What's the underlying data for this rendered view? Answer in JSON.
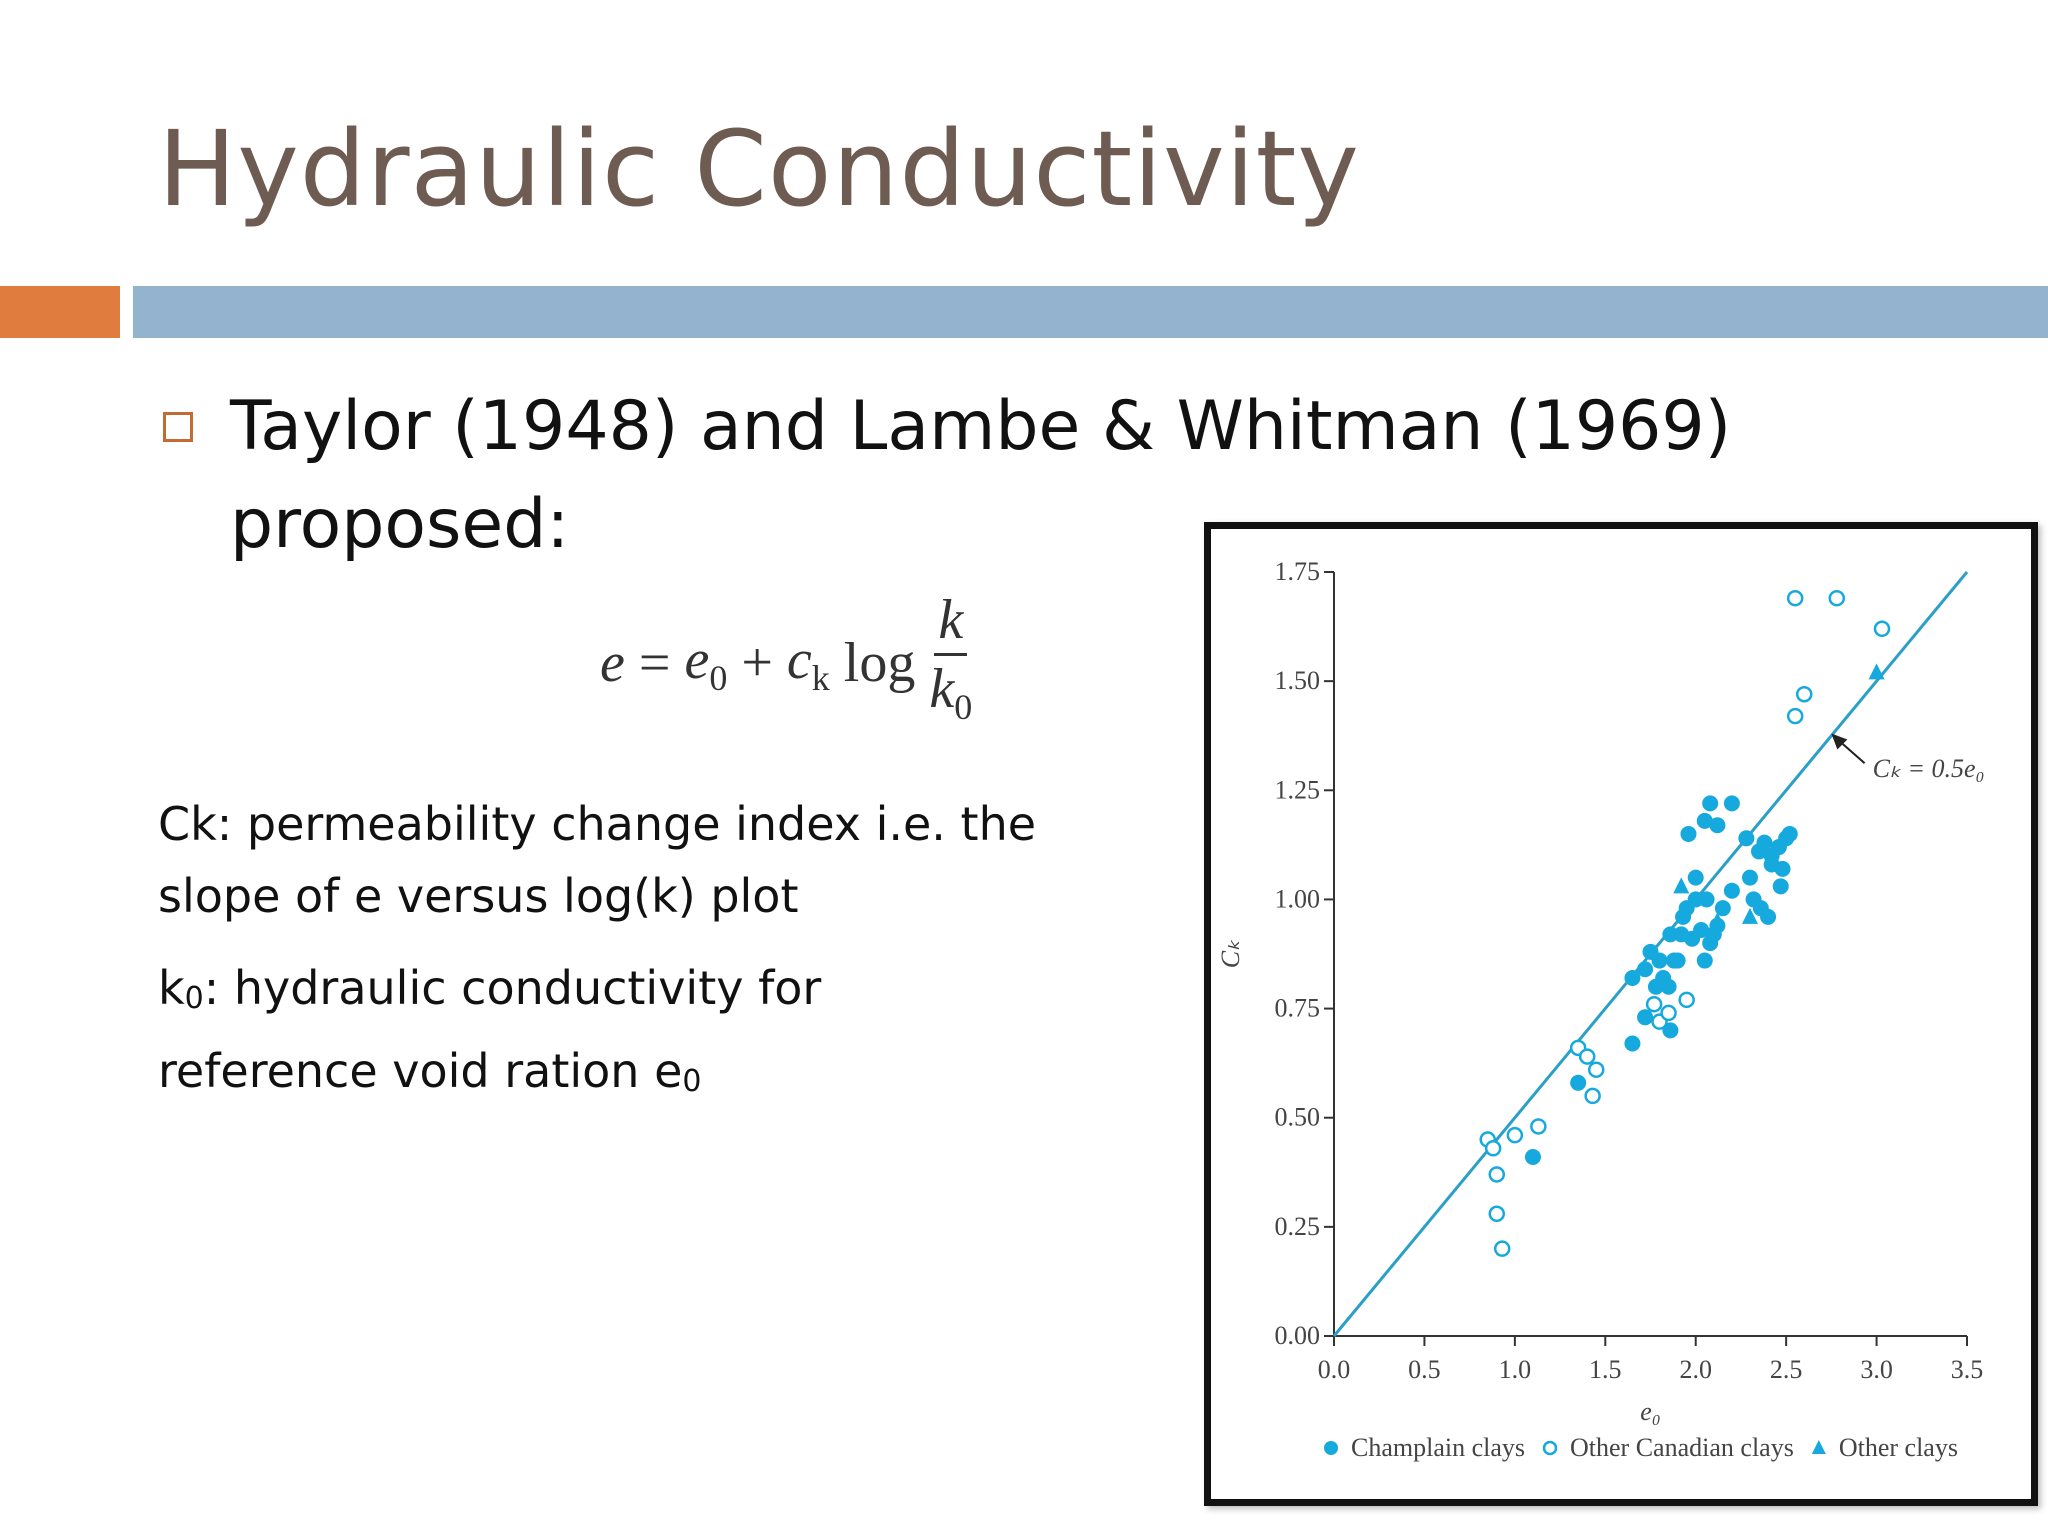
{
  "slide": {
    "title": "Hydraulic Conductivity",
    "bullet": "Taylor (1948) and Lambe & Whitman (1969) proposed:",
    "formula": {
      "lhs": "e",
      "equals": "=",
      "e0_base": "e",
      "e0_sub": "0",
      "plus": "+",
      "ck_base": "c",
      "ck_sub": "k",
      "log": "log",
      "numerator": "k",
      "denominator_base": "k",
      "denominator_sub": "0"
    },
    "def1_line1": "Ck: permeability change index i.e. the",
    "def1_line2": "slope of e versus log(k) plot",
    "def2_line1_a": "k",
    "def2_line1_sub": "0",
    "def2_line1_b": ": hydraulic conductivity for",
    "def2_line2_a": "reference void ration e",
    "def2_line2_sub": "0"
  },
  "colors": {
    "title": "#6e5b51",
    "accent_bar": "#e07c3e",
    "main_bar": "#94b3ce",
    "bullet": "#c46b34",
    "marker": "#16a9de",
    "line": "#2a9fc7"
  },
  "chart_data": {
    "type": "scatter",
    "xlabel": "e₀",
    "ylabel": "Cₖ",
    "xlim": [
      0.0,
      3.5
    ],
    "ylim": [
      0.0,
      1.75
    ],
    "x_ticks": [
      "0.0",
      "0.5",
      "1.0",
      "1.5",
      "2.0",
      "2.5",
      "3.0",
      "3.5"
    ],
    "y_ticks": [
      "0.00",
      "0.25",
      "0.50",
      "0.75",
      "1.00",
      "1.25",
      "1.50",
      "1.75"
    ],
    "annotation": "Cₖ = 0.5e₀",
    "annotation_target": [
      2.75,
      1.38
    ],
    "annotation_text_at": [
      3.0,
      1.28
    ],
    "reference_line": {
      "slope": 0.5,
      "x": [
        0.0,
        3.5
      ]
    },
    "legend_position": "bottom",
    "series": [
      {
        "name": "Champlain clays",
        "marker": "filled-circle",
        "points": [
          [
            1.1,
            0.41
          ],
          [
            1.35,
            0.58
          ],
          [
            1.65,
            0.67
          ],
          [
            1.72,
            0.73
          ],
          [
            1.86,
            0.7
          ],
          [
            1.65,
            0.82
          ],
          [
            1.72,
            0.84
          ],
          [
            1.75,
            0.88
          ],
          [
            1.78,
            0.8
          ],
          [
            1.82,
            0.82
          ],
          [
            1.8,
            0.86
          ],
          [
            1.85,
            0.8
          ],
          [
            1.88,
            0.86
          ],
          [
            1.9,
            0.86
          ],
          [
            1.92,
            0.92
          ],
          [
            1.98,
            0.91
          ],
          [
            2.05,
            0.86
          ],
          [
            1.86,
            0.92
          ],
          [
            1.95,
            0.98
          ],
          [
            2.0,
            1.0
          ],
          [
            2.03,
            0.93
          ],
          [
            2.08,
            0.9
          ],
          [
            2.1,
            0.92
          ],
          [
            2.12,
            0.94
          ],
          [
            2.15,
            0.98
          ],
          [
            2.2,
            1.02
          ],
          [
            2.06,
            1.0
          ],
          [
            2.0,
            1.05
          ],
          [
            1.96,
            1.15
          ],
          [
            2.05,
            1.18
          ],
          [
            2.08,
            1.22
          ],
          [
            2.12,
            1.17
          ],
          [
            2.2,
            1.22
          ],
          [
            2.3,
            1.05
          ],
          [
            2.35,
            1.11
          ],
          [
            2.38,
            1.13
          ],
          [
            2.42,
            1.08
          ],
          [
            2.46,
            1.12
          ],
          [
            2.5,
            1.14
          ],
          [
            2.52,
            1.15
          ],
          [
            2.48,
            1.07
          ],
          [
            2.47,
            1.03
          ],
          [
            2.32,
            1.0
          ],
          [
            2.36,
            0.98
          ],
          [
            2.4,
            0.96
          ],
          [
            2.42,
            1.1
          ],
          [
            2.28,
            1.14
          ],
          [
            1.93,
            0.96
          ]
        ]
      },
      {
        "name": "Other Canadian clays",
        "marker": "open-circle",
        "points": [
          [
            0.85,
            0.45
          ],
          [
            0.88,
            0.43
          ],
          [
            0.9,
            0.37
          ],
          [
            0.9,
            0.28
          ],
          [
            0.93,
            0.2
          ],
          [
            1.0,
            0.46
          ],
          [
            1.13,
            0.48
          ],
          [
            1.35,
            0.66
          ],
          [
            1.4,
            0.64
          ],
          [
            1.43,
            0.55
          ],
          [
            1.45,
            0.61
          ],
          [
            1.77,
            0.76
          ],
          [
            1.8,
            0.72
          ],
          [
            1.85,
            0.74
          ],
          [
            1.95,
            0.77
          ],
          [
            2.55,
            1.42
          ],
          [
            2.6,
            1.47
          ],
          [
            2.55,
            1.69
          ],
          [
            2.78,
            1.69
          ],
          [
            3.03,
            1.62
          ]
        ]
      },
      {
        "name": "Other clays",
        "marker": "filled-triangle",
        "points": [
          [
            1.92,
            1.03
          ],
          [
            2.12,
            0.95
          ],
          [
            2.3,
            0.96
          ],
          [
            3.0,
            1.52
          ]
        ]
      }
    ]
  }
}
